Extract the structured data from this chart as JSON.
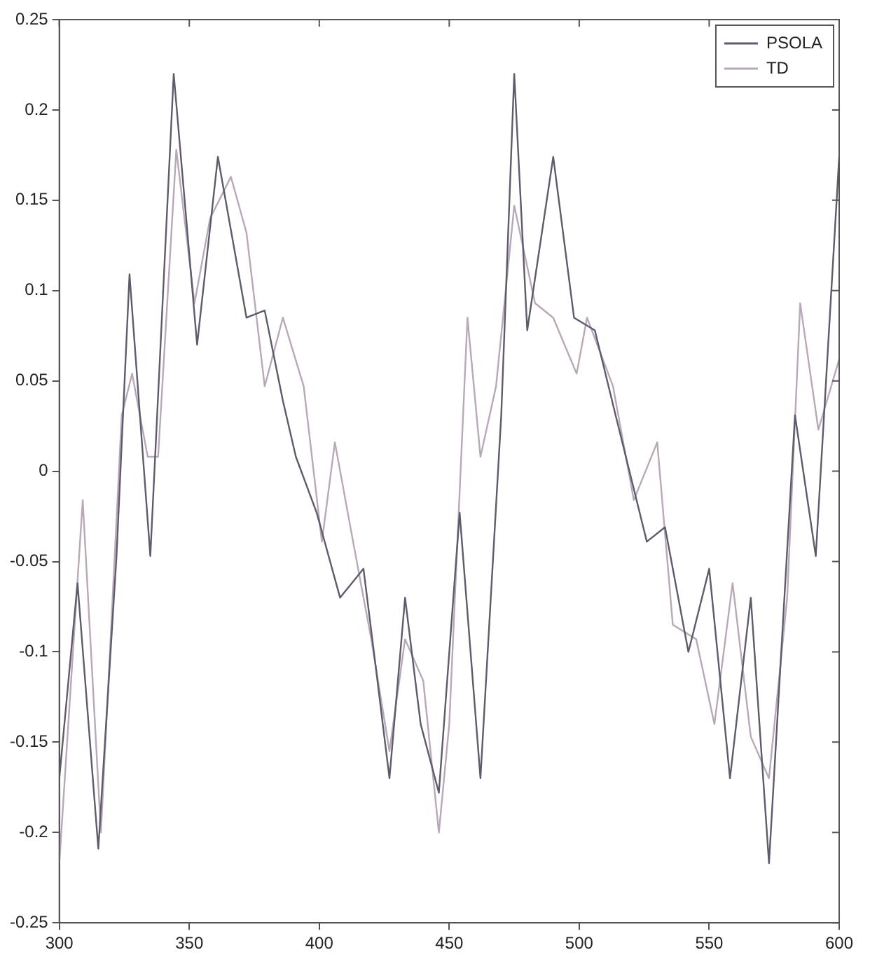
{
  "chart_data": {
    "type": "line",
    "xlim": [
      300,
      600
    ],
    "xticks": [
      300,
      350,
      400,
      450,
      500,
      550,
      600
    ],
    "ylim": [
      -0.25,
      0.25
    ],
    "yticks": [
      -0.25,
      -0.2,
      -0.15,
      -0.1,
      -0.05,
      0,
      0.05,
      0.1,
      0.15,
      0.2,
      0.25
    ],
    "grid": false,
    "legend": "top right",
    "marker": "none",
    "line_style": "solid",
    "series": [
      {
        "name": "PSOLA",
        "color": "#5c5c6c",
        "x": [
          300,
          307,
          315,
          322,
          327,
          335,
          344,
          353,
          361,
          372,
          379,
          386,
          391,
          399,
          408,
          417,
          421,
          427,
          433,
          439,
          446,
          454,
          462,
          470,
          475,
          480,
          490,
          498,
          506,
          514,
          526,
          533,
          542,
          550,
          558,
          566,
          573,
          583,
          591,
          600
        ],
        "values": [
          -0.17,
          -0.062,
          -0.209,
          -0.047,
          0.109,
          -0.047,
          0.22,
          0.07,
          0.174,
          0.085,
          0.089,
          0.039,
          0.008,
          -0.023,
          -0.07,
          -0.054,
          -0.1,
          -0.17,
          -0.07,
          -0.14,
          -0.178,
          -0.023,
          -0.17,
          0.031,
          0.22,
          0.078,
          0.174,
          0.085,
          0.078,
          0.031,
          -0.039,
          -0.031,
          -0.1,
          -0.054,
          -0.17,
          -0.07,
          -0.217,
          0.031,
          -0.047,
          0.174
        ]
      },
      {
        "name": "TD",
        "color": "#b8a8b8",
        "x": [
          300,
          309,
          316,
          324,
          328,
          334,
          338,
          345,
          352,
          358,
          366,
          372,
          379,
          386,
          394,
          401,
          406,
          413,
          420,
          427,
          433,
          440,
          446,
          450,
          457,
          462,
          468,
          475,
          483,
          490,
          499,
          503,
          513,
          521,
          530,
          536,
          545,
          552,
          559,
          566,
          573,
          580,
          585,
          592,
          600
        ],
        "values": [
          -0.217,
          -0.016,
          -0.2,
          0.031,
          0.054,
          0.008,
          0.008,
          0.178,
          0.093,
          0.14,
          0.163,
          0.132,
          0.047,
          0.085,
          0.047,
          -0.039,
          0.016,
          -0.039,
          -0.093,
          -0.155,
          -0.093,
          -0.116,
          -0.2,
          -0.14,
          0.085,
          0.008,
          0.047,
          0.147,
          0.093,
          0.085,
          0.054,
          0.085,
          0.047,
          -0.016,
          0.016,
          -0.085,
          -0.093,
          -0.14,
          -0.062,
          -0.147,
          -0.17,
          -0.07,
          0.093,
          0.023,
          0.062
        ]
      }
    ]
  }
}
